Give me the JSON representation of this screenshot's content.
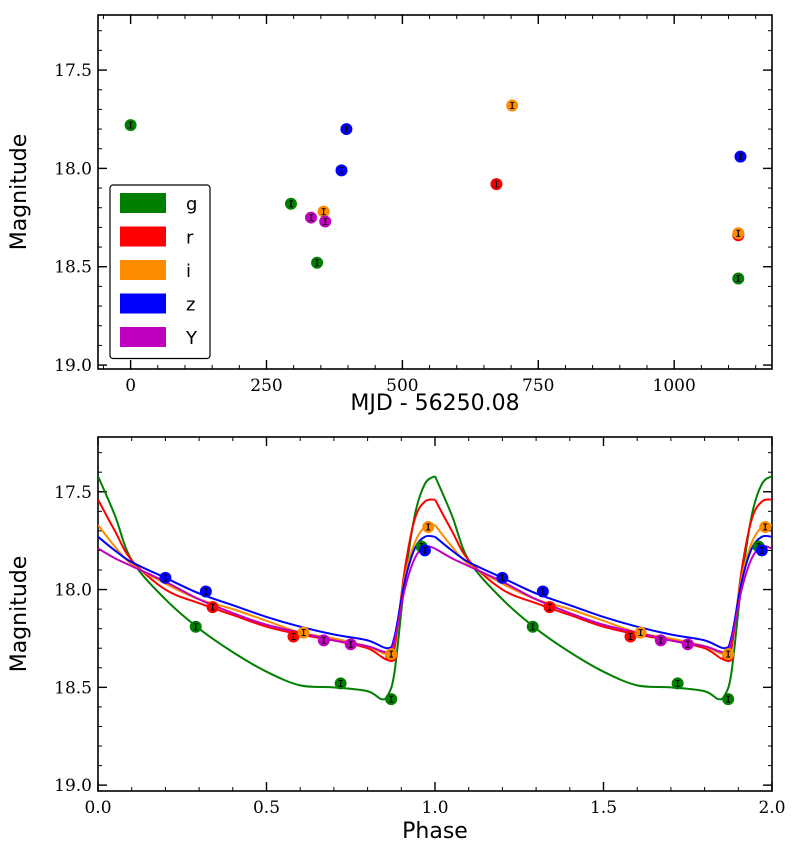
{
  "chart_data": [
    {
      "type": "scatter",
      "xlabel": "MJD - 56250.08",
      "ylabel": "Magnitude",
      "xlim": [
        -60,
        1180
      ],
      "ylim": [
        19.02,
        17.22
      ],
      "y_inverted": true,
      "xticks": [
        0,
        250,
        500,
        750,
        1000
      ],
      "xtick_labels": [
        "0",
        "250",
        "500",
        "750",
        "1000"
      ],
      "yticks": [
        17.5,
        18.0,
        18.5,
        19.0
      ],
      "ytick_labels": [
        "17.5",
        "18.0",
        "18.5",
        "19.0"
      ],
      "legend_placement": "center-left",
      "series": [
        {
          "name": "g",
          "color": "#008000",
          "points": [
            {
              "x": 0,
              "y": 17.78
            },
            {
              "x": 295,
              "y": 18.18
            },
            {
              "x": 343,
              "y": 18.48
            },
            {
              "x": 1118,
              "y": 18.56
            }
          ]
        },
        {
          "name": "r",
          "color": "#ff0000",
          "points": [
            {
              "x": 673,
              "y": 18.08
            },
            {
              "x": 1118,
              "y": 18.34
            }
          ]
        },
        {
          "name": "i",
          "color": "#ff8c00",
          "points": [
            {
              "x": 355,
              "y": 18.22
            },
            {
              "x": 702,
              "y": 17.68
            },
            {
              "x": 1118,
              "y": 18.33
            }
          ]
        },
        {
          "name": "z",
          "color": "#0000ff",
          "points": [
            {
              "x": 388,
              "y": 18.01
            },
            {
              "x": 397,
              "y": 17.8
            },
            {
              "x": 1122,
              "y": 17.94
            }
          ]
        },
        {
          "name": "Y",
          "color": "#bf00bf",
          "points": [
            {
              "x": 332,
              "y": 18.25
            },
            {
              "x": 358,
              "y": 18.27
            }
          ]
        }
      ]
    },
    {
      "type": "line",
      "xlabel": "Phase",
      "ylabel": "Magnitude",
      "xlim": [
        0.0,
        2.0
      ],
      "ylim": [
        19.03,
        17.22
      ],
      "y_inverted": true,
      "xticks": [
        0.0,
        0.5,
        1.0,
        1.5,
        2.0
      ],
      "xtick_labels": [
        "0.0",
        "0.5",
        "1.0",
        "1.5",
        "2.0"
      ],
      "yticks": [
        17.5,
        18.0,
        18.5,
        19.0
      ],
      "ytick_labels": [
        "17.5",
        "18.0",
        "18.5",
        "19.0"
      ],
      "series": [
        {
          "name": "g",
          "color": "#008000",
          "curve": [
            [
              0.0,
              17.42
            ],
            [
              0.05,
              17.62
            ],
            [
              0.1,
              17.85
            ],
            [
              0.2,
              18.05
            ],
            [
              0.3,
              18.2
            ],
            [
              0.4,
              18.32
            ],
            [
              0.5,
              18.42
            ],
            [
              0.6,
              18.49
            ],
            [
              0.7,
              18.5
            ],
            [
              0.8,
              18.52
            ],
            [
              0.84,
              18.56
            ],
            [
              0.86,
              18.54
            ],
            [
              0.88,
              18.42
            ],
            [
              0.91,
              17.96
            ],
            [
              0.94,
              17.62
            ],
            [
              0.97,
              17.46
            ],
            [
              1.0,
              17.42
            ]
          ],
          "points": [
            {
              "x": 0.29,
              "y": 18.19
            },
            {
              "x": 0.72,
              "y": 18.48
            },
            {
              "x": 0.87,
              "y": 18.56
            },
            {
              "x": 0.96,
              "y": 17.78
            }
          ]
        },
        {
          "name": "r",
          "color": "#ff0000",
          "curve": [
            [
              0.0,
              17.54
            ],
            [
              0.05,
              17.7
            ],
            [
              0.1,
              17.85
            ],
            [
              0.2,
              18.0
            ],
            [
              0.3,
              18.07
            ],
            [
              0.4,
              18.13
            ],
            [
              0.5,
              18.19
            ],
            [
              0.6,
              18.23
            ],
            [
              0.7,
              18.26
            ],
            [
              0.8,
              18.3
            ],
            [
              0.86,
              18.36
            ],
            [
              0.88,
              18.3
            ],
            [
              0.91,
              17.9
            ],
            [
              0.94,
              17.64
            ],
            [
              0.97,
              17.55
            ],
            [
              1.0,
              17.54
            ]
          ],
          "points": [
            {
              "x": 0.34,
              "y": 18.09
            },
            {
              "x": 0.58,
              "y": 18.24
            },
            {
              "x": 0.87,
              "y": 18.34
            }
          ]
        },
        {
          "name": "i",
          "color": "#ff8c00",
          "curve": [
            [
              0.0,
              17.67
            ],
            [
              0.05,
              17.78
            ],
            [
              0.1,
              17.87
            ],
            [
              0.2,
              17.97
            ],
            [
              0.3,
              18.05
            ],
            [
              0.4,
              18.1
            ],
            [
              0.5,
              18.16
            ],
            [
              0.6,
              18.22
            ],
            [
              0.7,
              18.25
            ],
            [
              0.8,
              18.29
            ],
            [
              0.86,
              18.33
            ],
            [
              0.88,
              18.26
            ],
            [
              0.91,
              17.94
            ],
            [
              0.94,
              17.76
            ],
            [
              0.97,
              17.68
            ],
            [
              1.0,
              17.67
            ]
          ],
          "points": [
            {
              "x": 0.61,
              "y": 18.22
            },
            {
              "x": 0.87,
              "y": 18.33
            },
            {
              "x": 0.98,
              "y": 17.68
            }
          ]
        },
        {
          "name": "z",
          "color": "#0000ff",
          "curve": [
            [
              0.0,
              17.73
            ],
            [
              0.05,
              17.8
            ],
            [
              0.1,
              17.86
            ],
            [
              0.2,
              17.94
            ],
            [
              0.3,
              18.02
            ],
            [
              0.4,
              18.08
            ],
            [
              0.5,
              18.14
            ],
            [
              0.6,
              18.19
            ],
            [
              0.7,
              18.23
            ],
            [
              0.8,
              18.26
            ],
            [
              0.86,
              18.3
            ],
            [
              0.88,
              18.24
            ],
            [
              0.91,
              17.96
            ],
            [
              0.94,
              17.79
            ],
            [
              0.97,
              17.73
            ],
            [
              1.0,
              17.73
            ]
          ],
          "points": [
            {
              "x": 0.2,
              "y": 17.94
            },
            {
              "x": 0.32,
              "y": 18.01
            },
            {
              "x": 0.97,
              "y": 17.8
            }
          ]
        },
        {
          "name": "Y",
          "color": "#bf00bf",
          "curve": [
            [
              0.0,
              17.79
            ],
            [
              0.05,
              17.84
            ],
            [
              0.1,
              17.88
            ],
            [
              0.2,
              17.96
            ],
            [
              0.3,
              18.05
            ],
            [
              0.4,
              18.12
            ],
            [
              0.5,
              18.18
            ],
            [
              0.6,
              18.22
            ],
            [
              0.7,
              18.26
            ],
            [
              0.8,
              18.29
            ],
            [
              0.86,
              18.32
            ],
            [
              0.88,
              18.26
            ],
            [
              0.91,
              18.0
            ],
            [
              0.94,
              17.84
            ],
            [
              0.97,
              17.78
            ],
            [
              1.0,
              17.79
            ]
          ],
          "points": [
            {
              "x": 0.67,
              "y": 18.26
            },
            {
              "x": 0.75,
              "y": 18.28
            }
          ]
        }
      ]
    }
  ]
}
